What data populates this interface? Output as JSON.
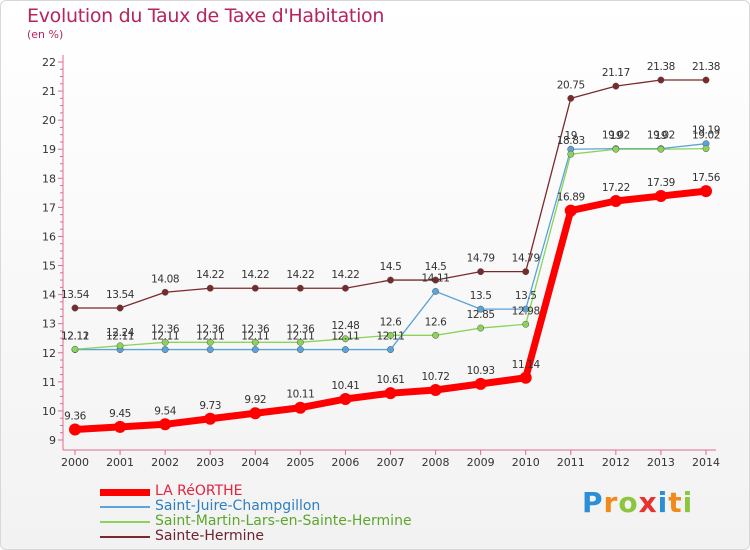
{
  "chart_data": {
    "type": "line",
    "title": "Evolution du Taux de Taxe d'Habitation",
    "subtitle": "(en %)",
    "categories": [
      "2000",
      "2001",
      "2002",
      "2003",
      "2004",
      "2005",
      "2006",
      "2007",
      "2008",
      "2009",
      "2010",
      "2011",
      "2012",
      "2013",
      "2014"
    ],
    "ylim": [
      9,
      22
    ],
    "yticks": [
      "9",
      "10",
      "11",
      "12",
      "13",
      "14",
      "15",
      "16",
      "17",
      "18",
      "19",
      "20",
      "21",
      "22"
    ],
    "grid": false,
    "legend_position": "bottom-left",
    "series": [
      {
        "name": "LA RéORTHE",
        "color": "#ff0000",
        "values": [
          9.36,
          9.45,
          9.54,
          9.73,
          9.92,
          10.11,
          10.41,
          10.61,
          10.72,
          10.93,
          11.14,
          16.89,
          17.22,
          17.39,
          17.56
        ],
        "labels": [
          "9.36",
          "9.45",
          "9.54",
          "9.73",
          "9.92",
          "10.11",
          "10.41",
          "10.61",
          "10.72",
          "10.93",
          "11.14",
          "16.89",
          "17.22",
          "17.39",
          "17.56"
        ]
      },
      {
        "name": "Saint-Juire-Champgillon",
        "color": "#5ba3d9",
        "values": [
          12.11,
          12.11,
          12.11,
          12.11,
          12.11,
          12.11,
          12.11,
          12.11,
          14.11,
          13.5,
          13.5,
          19,
          19.02,
          19.02,
          19.19
        ],
        "labels": [
          "12.11",
          "12.11",
          "12.11",
          "12.11",
          "12.11",
          "12.11",
          "12.11",
          "12.11",
          "14.11",
          "13.5",
          "13.5",
          "19",
          "19.02",
          "19.02",
          "19.19"
        ]
      },
      {
        "name": "Saint-Martin-Lars-en-Sainte-Hermine",
        "color": "#8bd35a",
        "values": [
          12.12,
          12.24,
          12.36,
          12.36,
          12.36,
          12.36,
          12.48,
          12.6,
          12.6,
          12.85,
          12.98,
          18.83,
          19,
          19,
          19.02
        ],
        "labels": [
          "12.12",
          "12.24",
          "12.36",
          "12.36",
          "12.36",
          "12.36",
          "12.48",
          "12.6",
          "12.6",
          "12.85",
          "12.98",
          "18.83",
          "19",
          "19",
          "19.02"
        ]
      },
      {
        "name": "Sainte-Hermine",
        "color": "#7a2a2a",
        "values": [
          13.54,
          13.54,
          14.08,
          14.22,
          14.22,
          14.22,
          14.22,
          14.5,
          14.5,
          14.79,
          14.79,
          20.75,
          21.17,
          21.38,
          21.38
        ],
        "labels": [
          "13.54",
          "13.54",
          "14.08",
          "14.22",
          "14.22",
          "14.22",
          "14.22",
          "14.5",
          "14.5",
          "14.79",
          "14.79",
          "20.75",
          "21.17",
          "21.38",
          "21.38"
        ]
      }
    ]
  },
  "brand": {
    "letters": [
      {
        "ch": "P",
        "color": "#2a8fd6"
      },
      {
        "ch": "r",
        "color": "#f08a1c"
      },
      {
        "ch": "o",
        "color": "#8cc63f"
      },
      {
        "ch": "x",
        "color": "#e8322d"
      },
      {
        "ch": "i",
        "color": "#2a8fd6"
      },
      {
        "ch": "t",
        "color": "#f08a1c"
      },
      {
        "ch": "i",
        "color": "#8cc63f"
      }
    ]
  }
}
